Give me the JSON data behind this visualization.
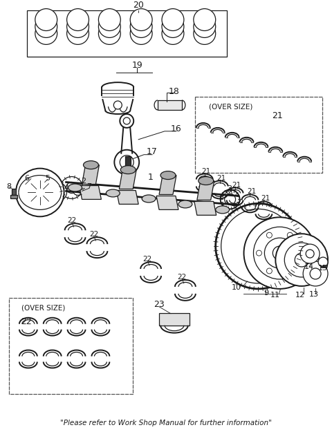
{
  "bg_color": "#ffffff",
  "line_color": "#1a1a1a",
  "dash_color": "#555555",
  "footer": "\"Please refer to Work Shop Manual for further information\"",
  "fig_width": 4.8,
  "fig_height": 6.25,
  "dpi": 100
}
